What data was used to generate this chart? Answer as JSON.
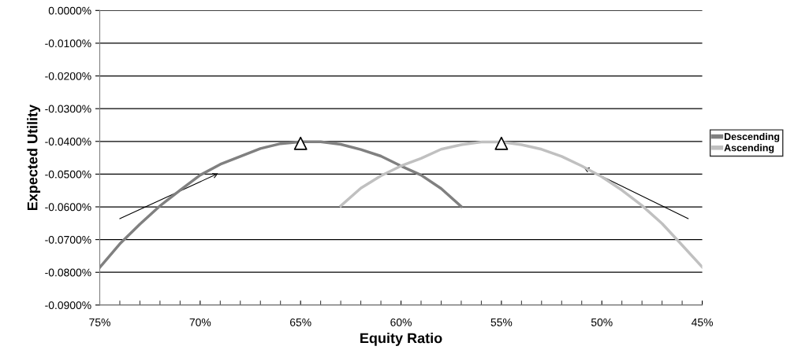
{
  "chart_data": {
    "type": "line",
    "xlabel": "Equity Ratio",
    "ylabel": "Expected Utility",
    "xlim": [
      75,
      45
    ],
    "ylim": [
      -0.09,
      0
    ],
    "xticks": [
      {
        "value": 75,
        "label": "75%"
      },
      {
        "value": 70,
        "label": "70%"
      },
      {
        "value": 65,
        "label": "65%"
      },
      {
        "value": 60,
        "label": "60%"
      },
      {
        "value": 55,
        "label": "55%"
      },
      {
        "value": 50,
        "label": "50%"
      },
      {
        "value": 45,
        "label": "45%"
      }
    ],
    "yticks": [
      {
        "value": 0,
        "label": "0.0000%"
      },
      {
        "value": -0.01,
        "label": "-0.0100%"
      },
      {
        "value": -0.02,
        "label": "-0.0200%"
      },
      {
        "value": -0.03,
        "label": "-0.0300%"
      },
      {
        "value": -0.04,
        "label": "-0.0400%"
      },
      {
        "value": -0.05,
        "label": "-0.0500%"
      },
      {
        "value": -0.06,
        "label": "-0.0600%"
      },
      {
        "value": -0.07,
        "label": "-0.0700%"
      },
      {
        "value": -0.08,
        "label": "-0.0800%"
      },
      {
        "value": -0.09,
        "label": "-0.0900%"
      }
    ],
    "grid": "y",
    "legend": "right",
    "marker": "none",
    "line_style": "solid",
    "series": [
      {
        "name": "Descending",
        "color": "#808080",
        "x": [
          75,
          74,
          73,
          72,
          71,
          70,
          69,
          68,
          67,
          66,
          65,
          64,
          63,
          62,
          61,
          60,
          59,
          58,
          57
        ],
        "values": [
          -0.0785,
          -0.0713,
          -0.0653,
          -0.0597,
          -0.0549,
          -0.0503,
          -0.047,
          -0.0446,
          -0.0422,
          -0.0407,
          -0.0401,
          -0.0401,
          -0.0409,
          -0.0425,
          -0.0445,
          -0.0475,
          -0.0503,
          -0.0544,
          -0.0599
        ]
      },
      {
        "name": "Ascending",
        "color": "#c0c0c0",
        "x": [
          63,
          62,
          61,
          60,
          59,
          58,
          57,
          56,
          55,
          54,
          53,
          52,
          51,
          50,
          49,
          48,
          47,
          46,
          45
        ],
        "values": [
          -0.0597,
          -0.0543,
          -0.0505,
          -0.0475,
          -0.0452,
          -0.0424,
          -0.041,
          -0.0402,
          -0.0402,
          -0.041,
          -0.0424,
          -0.0446,
          -0.0475,
          -0.0508,
          -0.0549,
          -0.0596,
          -0.0651,
          -0.0717,
          -0.0784
        ]
      },
      {
        "type": "scatter",
        "marker": "triangle",
        "color": "#000000",
        "x": [
          65,
          55
        ],
        "values": [
          -0.0406,
          -0.0406
        ]
      }
    ]
  }
}
